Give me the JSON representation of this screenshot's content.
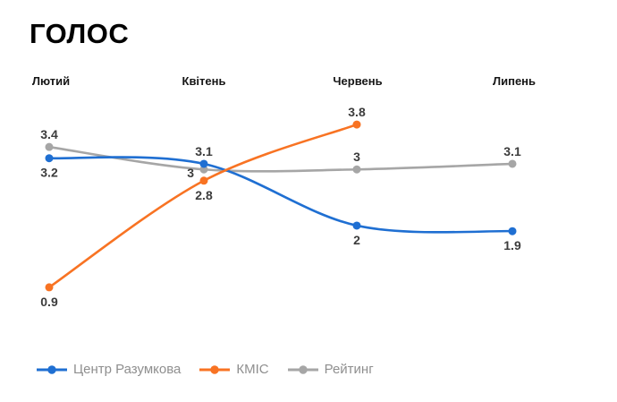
{
  "chart_data": {
    "type": "line",
    "title": "ГОЛОС",
    "curve": "smooth",
    "grid": false,
    "y_axis_visible": false,
    "legend_position": "bottom-left",
    "categories": [
      "Лютий",
      "Квітень",
      "Червень",
      "Липень"
    ],
    "series": [
      {
        "name": "Центр Разумкова",
        "color": "#1f6fd2",
        "values": [
          3.2,
          3.1,
          2,
          1.9
        ],
        "point_labels": [
          "3.2",
          "3.1",
          "2",
          "1.9"
        ],
        "label_pos": [
          "below",
          "above",
          "below",
          "below"
        ]
      },
      {
        "name": "КМІС",
        "color": "#f87323",
        "values": [
          0.9,
          2.8,
          3.8,
          null
        ],
        "point_labels": [
          "0.9",
          "2.8",
          "3.8",
          null
        ],
        "label_pos": [
          "below",
          "below",
          "above",
          null
        ]
      },
      {
        "name": "Рейтинг",
        "color": "#a6a6a6",
        "values": [
          3.4,
          3,
          3,
          3.1
        ],
        "point_labels": [
          "3.4",
          "3",
          "3",
          "3.1"
        ],
        "label_pos": [
          "above",
          "left",
          "above",
          "above"
        ]
      }
    ],
    "ylim": [
      0.5,
      4.2
    ]
  },
  "colors": {
    "background": "#ffffff",
    "title": "#000000",
    "axis_labels": "#161616",
    "point_labels": "#3c3c3c",
    "legend_text": "#8f8f8f"
  }
}
